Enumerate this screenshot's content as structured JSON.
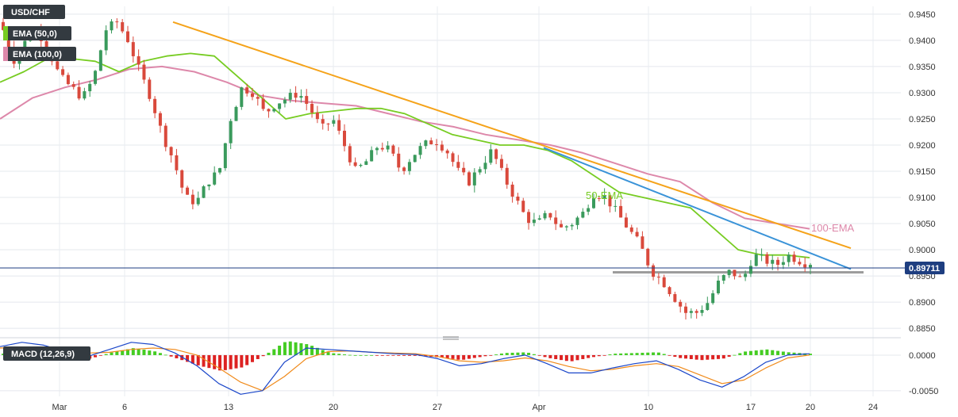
{
  "chart_data": [
    {
      "type": "candlestick",
      "symbol": "USD/CHF",
      "legend": [
        "USD/CHF",
        "EMA (50,0)",
        "EMA (100,0)"
      ],
      "last_price": "0.89711",
      "ylim": [
        0.8835,
        0.9465
      ],
      "yticks": [
        "0.9450",
        "0.9400",
        "0.9350",
        "0.9300",
        "0.9250",
        "0.9200",
        "0.9150",
        "0.9100",
        "0.9050",
        "0.9000",
        "0.8950",
        "0.8900",
        "0.8850"
      ],
      "x_labels": [
        "Mar",
        "6",
        "13",
        "20",
        "27",
        "Apr",
        "10",
        "17",
        "20",
        "24"
      ],
      "annotations": [
        {
          "text": "50-EMA",
          "color": "#77cc22"
        },
        {
          "text": "100-EMA",
          "color": "#dd88aa"
        }
      ],
      "colors": {
        "up": "#3a9a5c",
        "down": "#d9493c",
        "ema50": "#77cc22",
        "ema100": "#dd88aa",
        "resistance_1": "#f5a31a",
        "resistance_2": "#3a93d8",
        "support": "#9c9c9c",
        "price_line": "#1e3e80"
      },
      "price_path": [
        0.942,
        0.936,
        0.94,
        0.942,
        0.938,
        0.933,
        0.931,
        0.929,
        0.933,
        0.942,
        0.9435,
        0.94,
        0.934,
        0.929,
        0.922,
        0.917,
        0.91,
        0.909,
        0.913,
        0.915,
        0.925,
        0.931,
        0.93,
        0.926,
        0.928,
        0.929,
        0.93,
        0.927,
        0.923,
        0.925,
        0.92,
        0.915,
        0.917,
        0.92,
        0.919,
        0.915,
        0.918,
        0.92,
        0.921,
        0.919,
        0.915,
        0.913,
        0.916,
        0.919,
        0.914,
        0.91,
        0.906,
        0.905,
        0.907,
        0.904,
        0.905,
        0.907,
        0.911,
        0.91,
        0.907,
        0.904,
        0.901,
        0.896,
        0.894,
        0.891,
        0.888,
        0.888,
        0.89,
        0.894,
        0.896,
        0.894,
        0.899,
        0.898,
        0.897,
        0.899,
        0.898,
        0.8971
      ],
      "ema50_path": [
        0.932,
        0.934,
        0.9365,
        0.9365,
        0.936,
        0.934,
        0.936,
        0.937,
        0.9375,
        0.937,
        0.933,
        0.929,
        0.925,
        0.926,
        0.9265,
        0.927,
        0.927,
        0.926,
        0.924,
        0.922,
        0.921,
        0.92,
        0.92,
        0.919,
        0.917,
        0.914,
        0.911,
        0.91,
        0.909,
        0.908,
        0.904,
        0.9,
        0.899,
        0.899,
        0.8985
      ],
      "ema100_path": [
        0.925,
        0.929,
        0.931,
        0.9325,
        0.9345,
        0.935,
        0.934,
        0.932,
        0.9295,
        0.9285,
        0.928,
        0.9275,
        0.926,
        0.9245,
        0.9235,
        0.922,
        0.921,
        0.92,
        0.9185,
        0.9165,
        0.9145,
        0.913,
        0.909,
        0.906,
        0.905,
        0.904
      ],
      "trendlines": {
        "resistance_1": [
          0.9435,
          0.9003
        ],
        "resistance_2": [
          0.9195,
          0.8963
        ],
        "support": [
          0.8957,
          0.8957
        ]
      }
    },
    {
      "type": "macd",
      "title": "MACD (12,26,9)",
      "ylim": [
        -0.0058,
        0.002
      ],
      "yticks": [
        "0.0000",
        "-0.0050"
      ],
      "macd_path": [
        0.0012,
        0.0018,
        0.0014,
        0.0005,
        -0.0002,
        0.0008,
        0.0018,
        0.0015,
        0.0003,
        -0.0015,
        -0.004,
        -0.0055,
        -0.005,
        -0.001,
        0.001,
        0.0008,
        0.0006,
        0.0004,
        0.0002,
        0.0001,
        -0.0005,
        -0.0015,
        -0.0012,
        -0.0005,
        0.0,
        -0.0012,
        -0.0025,
        -0.0025,
        -0.0018,
        -0.0012,
        -0.0008,
        -0.002,
        -0.0035,
        -0.0045,
        -0.003,
        -0.001,
        0.0,
        0.0002
      ],
      "signal_path": [
        0.001,
        0.0011,
        0.001,
        0.0006,
        0.0003,
        0.0004,
        0.0008,
        0.001,
        0.0008,
        0.0,
        -0.0018,
        -0.0038,
        -0.005,
        -0.003,
        -0.0005,
        0.0005,
        0.0006,
        0.0004,
        0.0003,
        0.0002,
        -0.0002,
        -0.0008,
        -0.001,
        -0.0008,
        -0.0004,
        -0.0008,
        -0.0016,
        -0.0022,
        -0.002,
        -0.0015,
        -0.0012,
        -0.0016,
        -0.0028,
        -0.004,
        -0.0035,
        -0.0018,
        -0.0004,
        0.0
      ],
      "colors": {
        "macd": "#1a46c9",
        "signal": "#f08a1a",
        "hist_up": "#44cc22",
        "hist_down": "#dd2222"
      }
    }
  ]
}
